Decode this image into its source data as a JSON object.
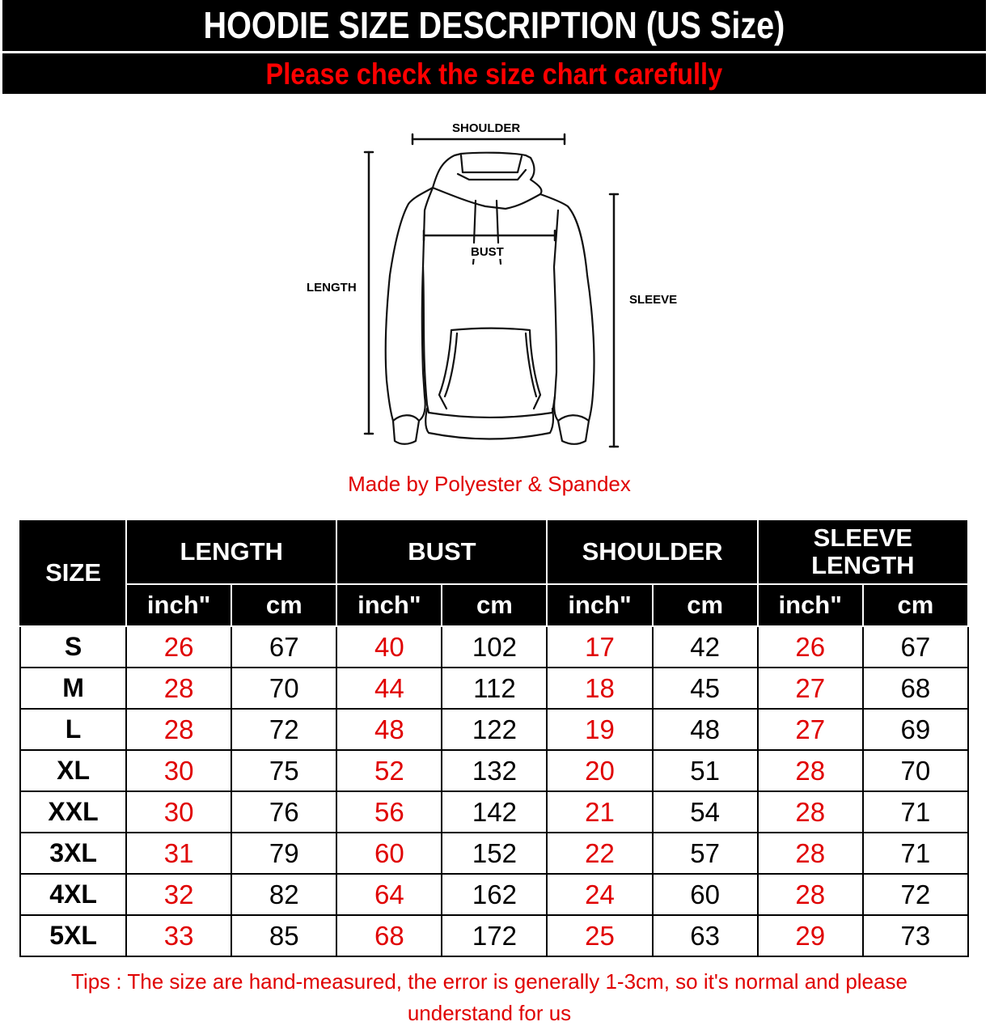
{
  "header": {
    "title": "HOODIE SIZE DESCRIPTION (US Size)",
    "subtitle": "Please check the size chart carefully"
  },
  "diagram": {
    "shoulder": "SHOULDER",
    "bust": "BUST",
    "length": "LENGTH",
    "sleeve": "SLEEVE"
  },
  "material": "Made by Polyester & Spandex",
  "colors": {
    "header_bg": "#000000",
    "accent_red": "#ff0000",
    "title": "#ffffff"
  },
  "table": {
    "size_header": "SIZE",
    "groups": [
      "LENGTH",
      "BUST",
      "SHOULDER",
      "SLEEVE LENGTH"
    ],
    "units": [
      "inch\"",
      "cm",
      "inch\"",
      "cm",
      "inch\"",
      "cm",
      "inch\"",
      "cm"
    ],
    "rows": [
      {
        "size": "S",
        "values": [
          "26",
          "67",
          "40",
          "102",
          "17",
          "42",
          "26",
          "67"
        ]
      },
      {
        "size": "M",
        "values": [
          "28",
          "70",
          "44",
          "112",
          "18",
          "45",
          "27",
          "68"
        ]
      },
      {
        "size": "L",
        "values": [
          "28",
          "72",
          "48",
          "122",
          "19",
          "48",
          "27",
          "69"
        ]
      },
      {
        "size": "XL",
        "values": [
          "30",
          "75",
          "52",
          "132",
          "20",
          "51",
          "28",
          "70"
        ]
      },
      {
        "size": "XXL",
        "values": [
          "30",
          "76",
          "56",
          "142",
          "21",
          "54",
          "28",
          "71"
        ]
      },
      {
        "size": "3XL",
        "values": [
          "31",
          "79",
          "60",
          "152",
          "22",
          "57",
          "28",
          "71"
        ]
      },
      {
        "size": "4XL",
        "values": [
          "32",
          "82",
          "64",
          "162",
          "24",
          "60",
          "28",
          "72"
        ]
      },
      {
        "size": "5XL",
        "values": [
          "33",
          "85",
          "68",
          "172",
          "25",
          "63",
          "29",
          "73"
        ]
      }
    ]
  },
  "tips": "Tips : The size are hand-measured, the error is generally 1-3cm, so it's normal and please understand for us"
}
